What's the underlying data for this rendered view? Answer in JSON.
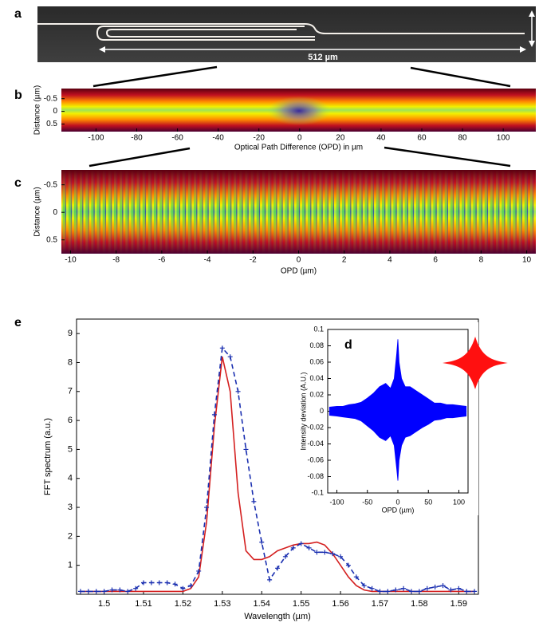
{
  "panel_a": {
    "panel_label": "a",
    "scale_label": "512 µm"
  },
  "chart_data": [
    {
      "type": "heatmap",
      "panel_label": "b",
      "xlabel": "Optical Path Difference (OPD) in µm",
      "ylabel": "Distance (µm)",
      "xlim": [
        -117,
        116
      ],
      "xticks": [
        -100,
        -80,
        -60,
        -40,
        -20,
        0,
        20,
        40,
        60,
        80,
        100
      ],
      "ylim": [
        0.8,
        -0.9
      ],
      "yticks": [
        -0.5,
        0,
        0.5
      ]
    },
    {
      "type": "heatmap",
      "panel_label": "c",
      "xlabel": "OPD (µm)",
      "ylabel": "Distance (µm)",
      "xlim": [
        -10.4,
        10.4
      ],
      "xticks": [
        -10,
        -8,
        -6,
        -4,
        -2,
        0,
        2,
        4,
        6,
        8,
        10
      ],
      "ylim": [
        0.75,
        -0.77
      ],
      "yticks": [
        -0.5,
        0,
        0.5
      ]
    },
    {
      "type": "line",
      "panel_label": "e",
      "xlabel": "Wavelength (µm)",
      "ylabel": "FFT spectrum (a.u.)",
      "xlim": [
        1.493,
        1.595
      ],
      "xticks": [
        1.5,
        1.51,
        1.52,
        1.53,
        1.54,
        1.55,
        1.56,
        1.57,
        1.58,
        1.59
      ],
      "ylim": [
        0,
        9.5
      ],
      "yticks": [
        1,
        2,
        3,
        4,
        5,
        6,
        7,
        8,
        9
      ],
      "x": [
        1.494,
        1.496,
        1.498,
        1.5,
        1.502,
        1.504,
        1.506,
        1.508,
        1.51,
        1.512,
        1.514,
        1.516,
        1.518,
        1.52,
        1.522,
        1.524,
        1.526,
        1.528,
        1.53,
        1.532,
        1.534,
        1.536,
        1.538,
        1.54,
        1.542,
        1.544,
        1.546,
        1.548,
        1.55,
        1.552,
        1.554,
        1.556,
        1.558,
        1.56,
        1.562,
        1.564,
        1.566,
        1.568,
        1.57,
        1.572,
        1.574,
        1.576,
        1.578,
        1.58,
        1.582,
        1.584,
        1.586,
        1.588,
        1.59,
        1.592,
        1.594
      ],
      "series": [
        {
          "color": "#d42020",
          "linestyle": "solid",
          "marker": "none",
          "values": [
            0.1,
            0.1,
            0.1,
            0.1,
            0.1,
            0.1,
            0.1,
            0.1,
            0.1,
            0.1,
            0.1,
            0.1,
            0.1,
            0.1,
            0.2,
            0.6,
            2.5,
            5.8,
            8.2,
            7.0,
            3.5,
            1.5,
            1.2,
            1.2,
            1.3,
            1.5,
            1.6,
            1.7,
            1.75,
            1.75,
            1.8,
            1.7,
            1.4,
            1.0,
            0.6,
            0.3,
            0.15,
            0.1,
            0.1,
            0.1,
            0.1,
            0.1,
            0.1,
            0.1,
            0.1,
            0.1,
            0.1,
            0.1,
            0.1,
            0.1,
            0.1
          ]
        },
        {
          "color": "#1a2fb0",
          "linestyle": "dashed",
          "marker": "+",
          "values": [
            0.1,
            0.1,
            0.1,
            0.1,
            0.15,
            0.15,
            0.1,
            0.2,
            0.4,
            0.4,
            0.4,
            0.4,
            0.35,
            0.2,
            0.3,
            0.8,
            3.0,
            6.2,
            8.5,
            8.2,
            7.0,
            5.0,
            3.2,
            1.8,
            0.5,
            0.9,
            1.3,
            1.6,
            1.75,
            1.6,
            1.45,
            1.45,
            1.4,
            1.3,
            1.0,
            0.6,
            0.3,
            0.2,
            0.1,
            0.1,
            0.15,
            0.2,
            0.1,
            0.1,
            0.2,
            0.25,
            0.3,
            0.15,
            0.2,
            0.1,
            0.1
          ]
        }
      ]
    },
    {
      "type": "area",
      "panel_label": "d",
      "xlabel": "OPD (µm)",
      "ylabel": "Intensity deviation (A.U.)",
      "xlim": [
        -115,
        115
      ],
      "xticks": [
        -100,
        -50,
        0,
        50,
        100
      ],
      "ylim": [
        -0.1,
        0.1
      ],
      "yticks": [
        -0.1,
        -0.08,
        -0.06,
        -0.04,
        -0.02,
        0,
        0.02,
        0.04,
        0.06,
        0.08,
        0.1
      ],
      "x": [
        -112,
        -100,
        -90,
        -80,
        -70,
        -60,
        -50,
        -40,
        -30,
        -20,
        -12,
        -6,
        -2,
        0,
        2,
        6,
        12,
        20,
        30,
        40,
        50,
        60,
        70,
        80,
        90,
        100,
        112
      ],
      "series": [
        {
          "color": "#0000ff",
          "values": [
            0.005,
            0.006,
            0.006,
            0.008,
            0.009,
            0.011,
            0.016,
            0.022,
            0.03,
            0.034,
            0.028,
            0.04,
            0.07,
            0.088,
            0.06,
            0.04,
            0.03,
            0.03,
            0.025,
            0.02,
            0.015,
            0.01,
            0.01,
            0.008,
            0.008,
            0.007,
            0.006
          ]
        },
        {
          "color": "#0000ff",
          "values": [
            -0.005,
            -0.006,
            -0.007,
            -0.008,
            -0.009,
            -0.012,
            -0.018,
            -0.024,
            -0.032,
            -0.036,
            -0.03,
            -0.042,
            -0.07,
            -0.085,
            -0.06,
            -0.042,
            -0.032,
            -0.03,
            -0.025,
            -0.02,
            -0.016,
            -0.011,
            -0.01,
            -0.008,
            -0.008,
            -0.007,
            -0.006
          ]
        }
      ]
    }
  ]
}
